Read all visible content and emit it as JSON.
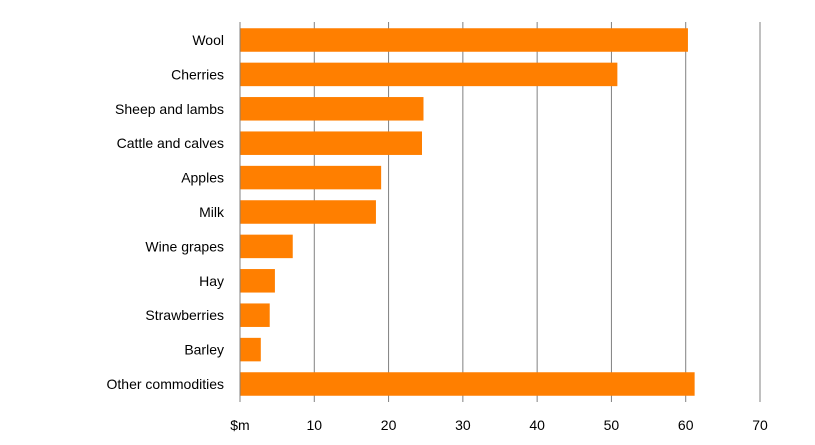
{
  "chart_data": {
    "type": "bar",
    "orientation": "horizontal",
    "categories": [
      "Wool",
      "Cherries",
      "Sheep and lambs",
      "Cattle and calves",
      "Apples",
      "Milk",
      "Wine grapes",
      "Hay",
      "Strawberries",
      "Barley",
      "Other commodities"
    ],
    "values": [
      60.3,
      50.8,
      24.7,
      24.5,
      19.0,
      18.3,
      7.1,
      4.7,
      4.0,
      2.8,
      61.2
    ],
    "title": "",
    "xlabel": "",
    "ylabel": "",
    "xlim": [
      0,
      70
    ],
    "x_ticks": [
      0,
      10,
      20,
      30,
      40,
      50,
      60,
      70
    ],
    "x_tick_labels": [
      "$m",
      "10",
      "20",
      "30",
      "40",
      "50",
      "60",
      "70"
    ],
    "grid": true,
    "grid_axis": "vertical",
    "legend": "none",
    "bar_color": "#FF7F00",
    "grid_color": "#808080"
  }
}
